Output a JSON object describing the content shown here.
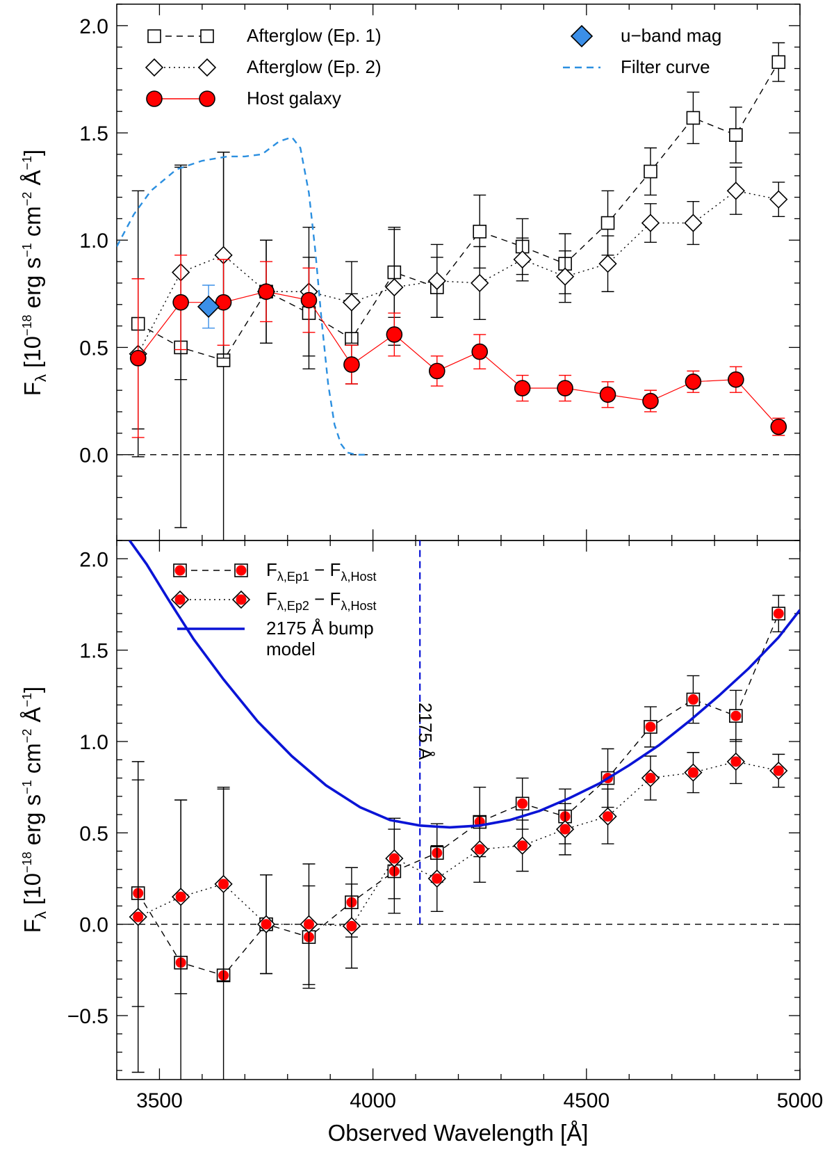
{
  "chart_data": [
    {
      "type": "scatter",
      "panel": "top",
      "xlim": [
        3400,
        5000
      ],
      "ylim": [
        -0.4,
        2.1
      ],
      "ylabel": "Fλ [10⁻¹⁸ erg s⁻¹ cm⁻² Å⁻¹]",
      "yticks": [
        0.0,
        0.5,
        1.0,
        1.5,
        2.0
      ],
      "ytick_labels": [
        "0.0",
        "0.5",
        "1.0",
        "1.5",
        "2.0"
      ],
      "zero_line": true,
      "series": [
        {
          "name": "Afterglow (Ep. 1)",
          "marker": "open-square",
          "line": "dashed",
          "color": "#000000",
          "x": [
            3450,
            3550,
            3650,
            3750,
            3850,
            3950,
            4050,
            4150,
            4250,
            4350,
            4450,
            4550,
            4650,
            4750,
            4850,
            4950
          ],
          "y": [
            0.61,
            0.5,
            0.44,
            0.76,
            0.66,
            0.54,
            0.85,
            0.78,
            1.04,
            0.97,
            0.89,
            1.08,
            1.32,
            1.57,
            1.49,
            1.83
          ],
          "err": [
            0.62,
            0.84,
            0.97,
            0.24,
            0.26,
            0.21,
            0.21,
            0.14,
            0.17,
            0.13,
            0.14,
            0.15,
            0.11,
            0.12,
            0.13,
            0.09
          ]
        },
        {
          "name": "Afterglow (Ep. 2)",
          "marker": "open-diamond",
          "line": "dotted",
          "color": "#000000",
          "x": [
            3450,
            3550,
            3650,
            3750,
            3850,
            3950,
            4050,
            4150,
            4250,
            4350,
            4450,
            4550,
            4650,
            4750,
            4850,
            4950
          ],
          "y": [
            0.47,
            0.85,
            0.93,
            0.76,
            0.76,
            0.71,
            0.78,
            0.81,
            0.8,
            0.91,
            0.83,
            0.89,
            1.08,
            1.08,
            1.23,
            1.19
          ],
          "err": [
            0.35,
            0.5,
            0.48,
            0.24,
            0.3,
            0.19,
            0.27,
            0.17,
            0.17,
            0.1,
            0.12,
            0.13,
            0.09,
            0.1,
            0.11,
            0.08
          ]
        },
        {
          "name": "Host galaxy",
          "marker": "filled-circle",
          "line": "solid",
          "color": "#ff0000",
          "x": [
            3450,
            3550,
            3650,
            3750,
            3850,
            3950,
            4050,
            4150,
            4250,
            4350,
            4450,
            4550,
            4650,
            4750,
            4850,
            4950
          ],
          "y": [
            0.45,
            0.71,
            0.71,
            0.76,
            0.72,
            0.42,
            0.56,
            0.39,
            0.48,
            0.31,
            0.31,
            0.28,
            0.25,
            0.34,
            0.35,
            0.13
          ],
          "err": [
            0.37,
            0.22,
            0.2,
            0.14,
            0.15,
            0.09,
            0.1,
            0.07,
            0.08,
            0.06,
            0.06,
            0.06,
            0.05,
            0.05,
            0.06,
            0.04
          ]
        },
        {
          "name": "u−band mag",
          "marker": "filled-diamond",
          "color": "#3b8fe8",
          "x": [
            3615
          ],
          "y": [
            0.69
          ],
          "err": [
            0.1
          ]
        },
        {
          "name": "Filter curve",
          "line": "dashed",
          "color": "#2b8fe0",
          "x": [
            3400,
            3440,
            3480,
            3540,
            3600,
            3660,
            3700,
            3740,
            3780,
            3810,
            3830,
            3850,
            3865,
            3880,
            3895,
            3910,
            3925,
            3940,
            3960,
            3990
          ],
          "y": [
            0.97,
            1.12,
            1.23,
            1.33,
            1.37,
            1.39,
            1.39,
            1.4,
            1.46,
            1.48,
            1.43,
            1.22,
            0.95,
            0.62,
            0.33,
            0.14,
            0.05,
            0.01,
            0.0,
            0.0
          ]
        }
      ],
      "legend": [
        {
          "label": "Afterglow (Ep. 1)",
          "series": 0
        },
        {
          "label": "Afterglow (Ep. 2)",
          "series": 1
        },
        {
          "label": "Host galaxy",
          "series": 2
        },
        {
          "label": "u−band mag",
          "series": 3
        },
        {
          "label": "Filter curve",
          "series": 4
        }
      ]
    },
    {
      "type": "scatter",
      "panel": "bottom",
      "xlim": [
        3400,
        5000
      ],
      "ylim": [
        -0.85,
        2.1
      ],
      "xlabel": "Observed Wavelength [Å]",
      "ylabel": "Fλ [10⁻¹⁸ erg s⁻¹ cm⁻² Å⁻¹]",
      "xticks": [
        3500,
        4000,
        4500,
        5000
      ],
      "xtick_labels": [
        "3500",
        "4000",
        "4500",
        "5000"
      ],
      "yticks": [
        -0.5,
        0.0,
        0.5,
        1.0,
        1.5,
        2.0
      ],
      "ytick_labels": [
        "−0.5",
        "0.0",
        "0.5",
        "1.0",
        "1.5",
        "2.0"
      ],
      "zero_line": true,
      "series": [
        {
          "name": "Fλ,Ep1 − Fλ,Host",
          "marker": "square-with-red-dot",
          "line": "dashed",
          "color": "#000000",
          "x": [
            3450,
            3550,
            3650,
            3750,
            3850,
            3950,
            4050,
            4150,
            4250,
            4350,
            4450,
            4550,
            4650,
            4750,
            4850,
            4950
          ],
          "y": [
            0.17,
            -0.21,
            -0.28,
            0.0,
            -0.07,
            0.12,
            0.29,
            0.39,
            0.56,
            0.66,
            0.59,
            0.8,
            1.08,
            1.23,
            1.14,
            1.7
          ],
          "err": [
            0.62,
            0.89,
            1.02,
            0.27,
            0.28,
            0.19,
            0.23,
            0.16,
            0.19,
            0.14,
            0.15,
            0.16,
            0.11,
            0.13,
            0.14,
            0.1
          ]
        },
        {
          "name": "Fλ,Ep2 − Fλ,Host",
          "marker": "diamond-with-red-dot",
          "line": "dotted",
          "color": "#000000",
          "x": [
            3450,
            3550,
            3650,
            3750,
            3850,
            3950,
            4050,
            4150,
            4250,
            4350,
            4450,
            4550,
            4650,
            4750,
            4850,
            4950
          ],
          "y": [
            0.04,
            0.15,
            0.22,
            0.0,
            0.0,
            -0.01,
            0.36,
            0.25,
            0.41,
            0.43,
            0.52,
            0.59,
            0.8,
            0.83,
            0.89,
            0.84
          ],
          "err": [
            0.85,
            0.53,
            0.53,
            0.27,
            0.33,
            0.23,
            0.22,
            0.18,
            0.18,
            0.14,
            0.14,
            0.15,
            0.12,
            0.11,
            0.12,
            0.09
          ]
        },
        {
          "name": "2175 Å bump model",
          "line": "solid",
          "color": "#0a14d6",
          "x": [
            3430,
            3470,
            3520,
            3580,
            3650,
            3730,
            3810,
            3890,
            3970,
            4040,
            4110,
            4180,
            4250,
            4320,
            4390,
            4460,
            4530,
            4600,
            4670,
            4740,
            4810,
            4880,
            4950,
            5000
          ],
          "y": [
            2.1,
            1.97,
            1.78,
            1.56,
            1.34,
            1.11,
            0.92,
            0.76,
            0.64,
            0.57,
            0.54,
            0.53,
            0.54,
            0.57,
            0.62,
            0.69,
            0.77,
            0.87,
            0.98,
            1.11,
            1.25,
            1.4,
            1.57,
            1.72
          ]
        }
      ],
      "vline": {
        "x": 4110,
        "ymin": 0.0,
        "ymax": 2.1,
        "label": "2175 Å",
        "color": "#0a14d6"
      },
      "legend": [
        {
          "label_main": "F",
          "label_sub": "λ,Ep1",
          "label_mid": " − F",
          "label_sub2": "λ,Host",
          "series": 0
        },
        {
          "label_main": "F",
          "label_sub": "λ,Ep2",
          "label_mid": " − F",
          "label_sub2": "λ,Host",
          "series": 1
        },
        {
          "label_line1": "2175 Å bump",
          "label_line2": "model",
          "series": 2
        }
      ]
    }
  ],
  "ylabel_parts": {
    "F": "F",
    "lambda": "λ",
    "unit_a": " [10",
    "exp18": "−18",
    "unit_b": " erg s",
    "exp1": "−1",
    "unit_c": " cm",
    "exp2": "−2",
    "unit_d": " Å",
    "exp3": "−1",
    "unit_e": "]"
  },
  "colors": {
    "host": "#ff0000",
    "uband": "#3b8fe8",
    "filter": "#2b8fe0",
    "bump": "#0a14d6"
  }
}
